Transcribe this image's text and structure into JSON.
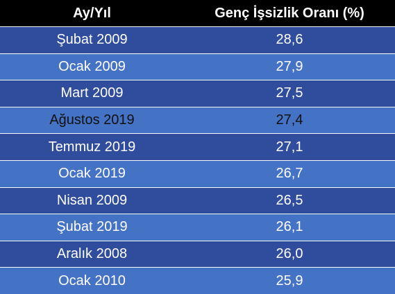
{
  "colors": {
    "header_bg": "#000000",
    "row_dark": "#2f4d9c",
    "row_light": "#4472c4",
    "text": "#ffffff"
  },
  "chart_data": {
    "type": "table",
    "columns": [
      "Ay/Yıl",
      "Genç İşsizlik Oranı (%)"
    ],
    "rows": [
      [
        "Şubat 2009",
        "28,6"
      ],
      [
        "Ocak 2009",
        "27,9"
      ],
      [
        "Mart 2009",
        "27,5"
      ],
      [
        "Ağustos 2019",
        "27,4"
      ],
      [
        "Temmuz 2019",
        "27,1"
      ],
      [
        "Ocak 2019",
        "26,7"
      ],
      [
        "Nisan 2009",
        "26,5"
      ],
      [
        "Şubat 2019",
        "26,1"
      ],
      [
        "Aralık 2008",
        "26,0"
      ],
      [
        "Ocak 2010",
        "25,9"
      ]
    ]
  }
}
